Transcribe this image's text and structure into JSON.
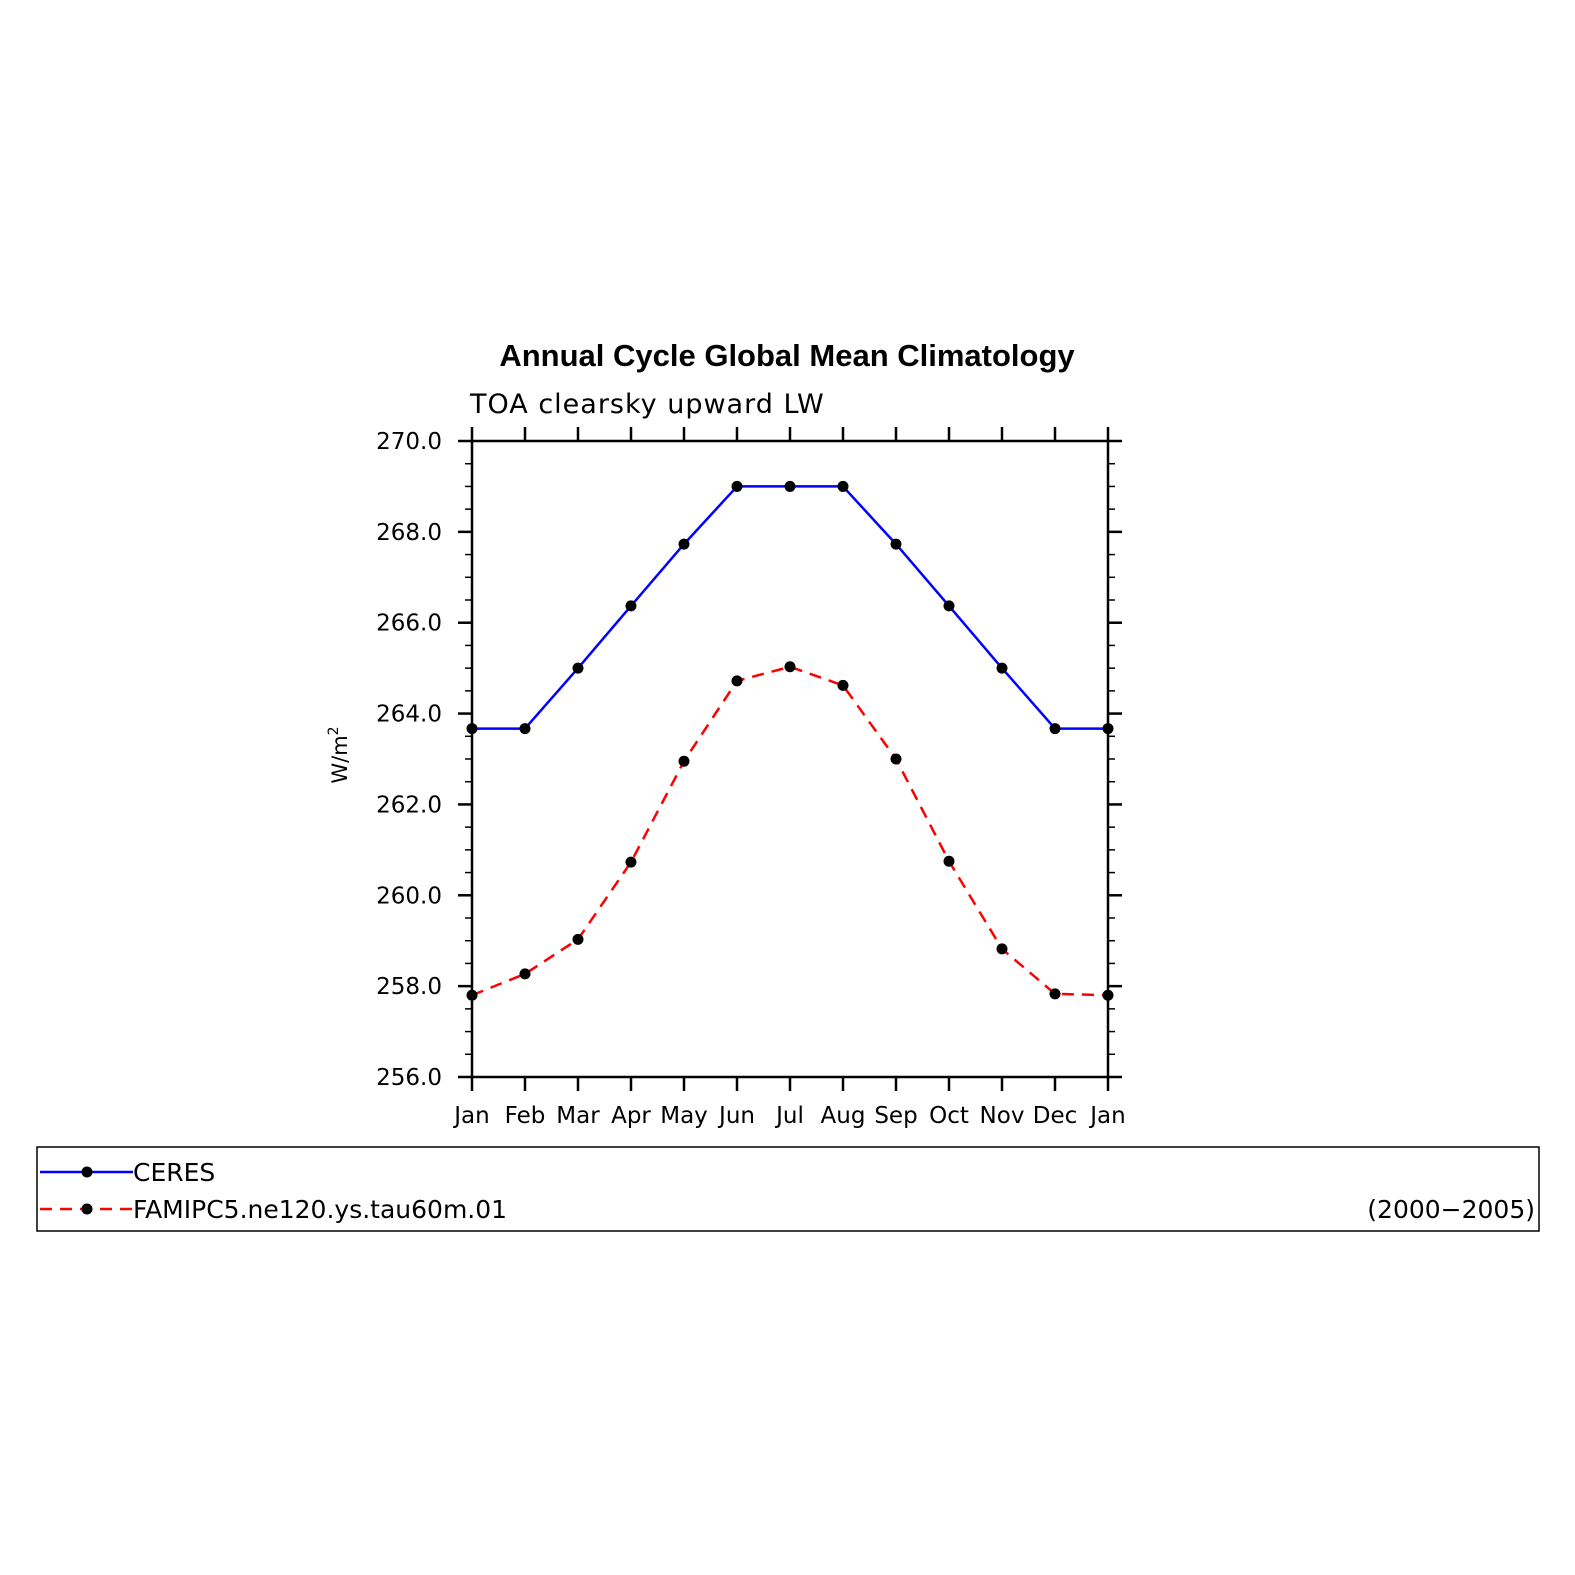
{
  "chart_data": {
    "type": "line",
    "title": "Annual Cycle Global Mean Climatology",
    "subtitle": "TOA clearsky upward LW",
    "ylabel": "W/m",
    "ylabel_superscript": "2",
    "xlabel": "",
    "categories": [
      "Jan",
      "Feb",
      "Mar",
      "Apr",
      "May",
      "Jun",
      "Jul",
      "Aug",
      "Sep",
      "Oct",
      "Nov",
      "Dec",
      "Jan"
    ],
    "ylim": [
      256.0,
      270.0
    ],
    "y_ticks": [
      "256.0",
      "258.0",
      "260.0",
      "262.0",
      "264.0",
      "266.0",
      "268.0",
      "270.0"
    ],
    "grid": false,
    "legend_position": "bottom",
    "legend_note": "(2000−2005)",
    "series": [
      {
        "name": "CERES",
        "color": "#0000ff",
        "style": "solid",
        "marker": "filled-circle",
        "values": [
          263.67,
          263.67,
          265.0,
          266.37,
          267.73,
          269.0,
          269.0,
          269.0,
          267.73,
          266.37,
          265.0,
          263.67,
          263.67
        ]
      },
      {
        "name": "FAMIPC5.ne120.ys.tau60m.01",
        "color": "#ff0000",
        "style": "dashed",
        "marker": "filled-circle",
        "values": [
          257.8,
          258.27,
          259.03,
          260.73,
          262.95,
          264.72,
          265.03,
          264.62,
          263.0,
          260.75,
          258.82,
          257.83,
          257.8
        ]
      }
    ]
  }
}
